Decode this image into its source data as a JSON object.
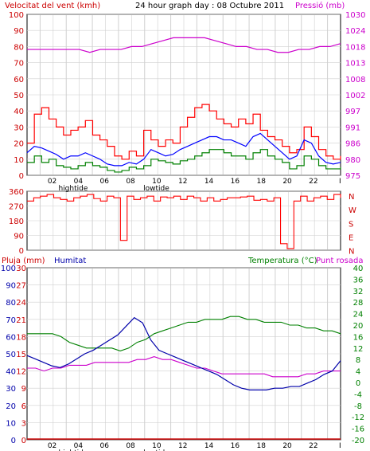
{
  "header": {
    "wind_label": "Velocitat del vent (kmh)",
    "title": "24 hour graph day : 08 Octubre 2011",
    "pressure_label": "Pressió (mb)"
  },
  "colors": {
    "wind_gust": "#ff0000",
    "wind_avg": "#0000ff",
    "wind_low": "#008000",
    "pressure": "#cc00cc",
    "direction": "#ff0000",
    "humidity": "#0000aa",
    "temperature": "#008000",
    "dewpoint": "#cc00cc",
    "rain": "#cc0000",
    "axis_red": "#cc0000",
    "axis_magenta": "#cc00cc",
    "axis_blue": "#0000aa",
    "axis_green": "#008000",
    "grid": "#d0d0d0"
  },
  "x_axis": {
    "hour_labels": [
      "02",
      "04",
      "06",
      "08",
      "10",
      "12",
      "14",
      "16",
      "18",
      "20",
      "22",
      "I"
    ],
    "tide_labels": [
      {
        "text": "hightide",
        "hour": 3.5
      },
      {
        "text": "lowtide",
        "hour": 10.0
      }
    ]
  },
  "panel_bottom_labels": {
    "rain": "Pluja (mm)",
    "humidity": "Humitat",
    "temp": "Temperatura (°C)",
    "dew": "Punt rosada"
  },
  "chart_data": [
    {
      "type": "line",
      "name": "wind-and-pressure",
      "x_range_hours": [
        0,
        24
      ],
      "left_axis": {
        "ticks": [
          "0",
          "10",
          "20",
          "30",
          "40",
          "50",
          "60",
          "70",
          "80",
          "90",
          "100"
        ],
        "range": [
          0,
          100
        ]
      },
      "right_axis": {
        "ticks": [
          "975",
          "980",
          "986",
          "991",
          "997",
          "1002",
          "1008",
          "1013",
          "1018",
          "1024",
          "1030"
        ],
        "range": [
          975,
          1030
        ]
      },
      "series": [
        {
          "key": "gust",
          "values": [
            20,
            38,
            42,
            35,
            30,
            25,
            28,
            30,
            34,
            25,
            22,
            18,
            12,
            10,
            15,
            12,
            28,
            22,
            18,
            22,
            20,
            30,
            36,
            42,
            44,
            40,
            35,
            32,
            30,
            35,
            32,
            38,
            28,
            24,
            22,
            18,
            14,
            16,
            30,
            24,
            16,
            12,
            10,
            12
          ]
        },
        {
          "key": "avg",
          "values": [
            14,
            18,
            17,
            15,
            13,
            10,
            12,
            12,
            14,
            12,
            10,
            7,
            6,
            6,
            8,
            7,
            10,
            16,
            14,
            12,
            13,
            16,
            18,
            20,
            22,
            24,
            24,
            22,
            22,
            20,
            18,
            24,
            26,
            22,
            18,
            14,
            10,
            12,
            22,
            20,
            12,
            8,
            7,
            8
          ]
        },
        {
          "key": "low",
          "values": [
            8,
            12,
            8,
            10,
            6,
            5,
            4,
            6,
            8,
            6,
            5,
            3,
            2,
            3,
            5,
            4,
            6,
            10,
            9,
            8,
            7,
            9,
            10,
            12,
            14,
            16,
            16,
            14,
            12,
            12,
            10,
            14,
            16,
            12,
            10,
            8,
            4,
            6,
            12,
            10,
            6,
            4,
            4,
            5
          ]
        },
        {
          "key": "pressure_mb",
          "values": [
            1018,
            1018,
            1018,
            1018,
            1018,
            1018,
            1017,
            1018,
            1018,
            1018,
            1019,
            1019,
            1020,
            1021,
            1022,
            1022,
            1022,
            1022,
            1021,
            1020,
            1019,
            1019,
            1018,
            1018,
            1017,
            1017,
            1018,
            1018,
            1019,
            1019,
            1020
          ]
        }
      ]
    },
    {
      "type": "line",
      "name": "wind-direction",
      "x_range_hours": [
        0,
        24
      ],
      "left_axis": {
        "ticks": [
          "0",
          "90",
          "180",
          "270",
          "360"
        ],
        "range": [
          0,
          360
        ]
      },
      "right_axis": {
        "ticks": [
          "N",
          "E",
          "S",
          "W",
          "N"
        ]
      },
      "series": [
        {
          "key": "direction_deg",
          "values": [
            300,
            320,
            330,
            340,
            320,
            310,
            300,
            320,
            330,
            340,
            315,
            300,
            330,
            320,
            60,
            330,
            310,
            320,
            330,
            300,
            325,
            320,
            330,
            310,
            330,
            320,
            300,
            320,
            300,
            310,
            320,
            320,
            325,
            330,
            305,
            310,
            300,
            320,
            40,
            10,
            300,
            330,
            300,
            320,
            330,
            310,
            340,
            320
          ]
        }
      ]
    },
    {
      "type": "line",
      "name": "rain-humidity-temperature",
      "x_range_hours": [
        0,
        24
      ],
      "left_axis_rain": {
        "ticks": [
          "0",
          "3",
          "6",
          "9",
          "12",
          "15",
          "18",
          "21",
          "24",
          "27",
          "30"
        ],
        "range": [
          0,
          30
        ]
      },
      "left_axis_humidity": {
        "ticks": [
          "0",
          "10",
          "20",
          "30",
          "40",
          "50",
          "60",
          "70",
          "80",
          "90",
          "100"
        ],
        "range": [
          0,
          100
        ]
      },
      "right_axis_temp": {
        "ticks": [
          "-20",
          "-16",
          "-12",
          "-8",
          "-4",
          "0",
          "4",
          "8",
          "12",
          "16",
          "20",
          "24",
          "28",
          "32",
          "36",
          "40"
        ],
        "range": [
          -20,
          40
        ]
      },
      "series": [
        {
          "key": "temperature_c",
          "values": [
            17,
            17,
            17,
            17,
            16,
            14,
            13,
            12,
            12,
            12,
            12,
            11,
            12,
            14,
            15,
            17,
            18,
            19,
            20,
            21,
            21,
            22,
            22,
            22,
            23,
            23,
            22,
            22,
            21,
            21,
            21,
            20,
            20,
            19,
            19,
            18,
            18,
            17
          ]
        },
        {
          "key": "dewpoint_c",
          "values": [
            5,
            5,
            4,
            5,
            5,
            6,
            6,
            6,
            7,
            7,
            7,
            7,
            7,
            8,
            8,
            9,
            8,
            8,
            7,
            6,
            5,
            5,
            4,
            3,
            3,
            3,
            3,
            3,
            3,
            2,
            2,
            2,
            2,
            3,
            3,
            4,
            4,
            4
          ]
        },
        {
          "key": "humidity_pct",
          "values": [
            49,
            47,
            45,
            43,
            42,
            44,
            47,
            50,
            52,
            55,
            58,
            61,
            66,
            71,
            68,
            58,
            52,
            50,
            48,
            46,
            44,
            42,
            40,
            38,
            35,
            32,
            30,
            29,
            29,
            29,
            30,
            30,
            31,
            31,
            33,
            35,
            38,
            40,
            46
          ]
        },
        {
          "key": "rain_mm",
          "values": [
            0,
            0,
            0,
            0,
            0,
            0,
            0,
            0,
            0,
            0,
            0,
            0,
            0,
            0,
            0,
            0,
            0,
            0,
            0,
            0,
            0,
            0,
            0,
            0,
            0
          ]
        }
      ]
    }
  ]
}
